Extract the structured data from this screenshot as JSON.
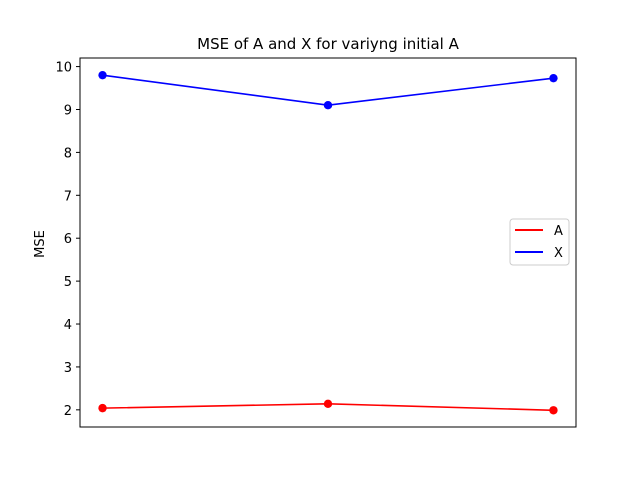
{
  "chart_data": {
    "type": "line",
    "title": "MSE of A and X for variyng initial A",
    "xlabel": "",
    "ylabel": "MSE",
    "x": [
      0,
      1,
      2
    ],
    "xlim": [
      -0.1,
      2.1
    ],
    "ylim": [
      1.6,
      10.2
    ],
    "yticks": [
      2,
      3,
      4,
      5,
      6,
      7,
      8,
      9,
      10
    ],
    "ytick_labels": [
      "2",
      "3",
      "4",
      "5",
      "6",
      "7",
      "8",
      "9",
      "10"
    ],
    "xticks_visible": false,
    "grid": false,
    "legend_position": "center-right",
    "series": [
      {
        "name": "A",
        "color": "#ff0000",
        "values": [
          2.04,
          2.14,
          1.99
        ]
      },
      {
        "name": "X",
        "color": "#0000ff",
        "values": [
          9.8,
          9.1,
          9.73
        ]
      }
    ]
  }
}
